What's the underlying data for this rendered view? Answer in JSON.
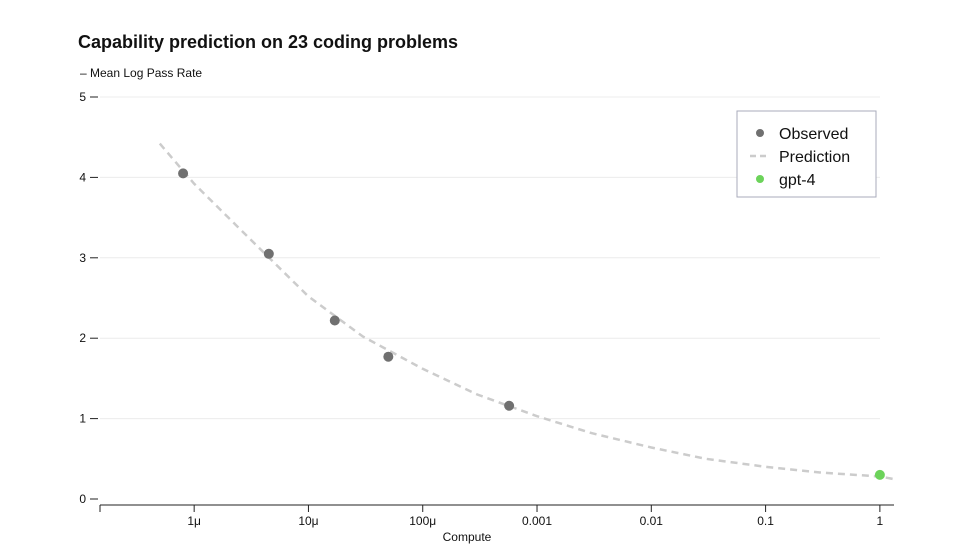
{
  "chart_data": {
    "type": "scatter",
    "title": "Capability prediction on 23 coding problems",
    "subtitle": "– Mean Log Pass Rate",
    "xlabel": "Compute",
    "ylabel": "– Mean Log Pass Rate",
    "x_scale": "log",
    "xlim": [
      1.5e-07,
      1.5
    ],
    "ylim": [
      0,
      5
    ],
    "grid": true,
    "x_ticks": [
      {
        "value": 1e-06,
        "label": "1μ"
      },
      {
        "value": 1e-05,
        "label": "10μ"
      },
      {
        "value": 0.0001,
        "label": "100μ"
      },
      {
        "value": 0.001,
        "label": "0.001"
      },
      {
        "value": 0.01,
        "label": "0.01"
      },
      {
        "value": 0.1,
        "label": "0.1"
      },
      {
        "value": 1,
        "label": "1"
      }
    ],
    "y_ticks": [
      {
        "value": 0,
        "label": "0"
      },
      {
        "value": 1,
        "label": "1"
      },
      {
        "value": 2,
        "label": "2"
      },
      {
        "value": 3,
        "label": "3"
      },
      {
        "value": 4,
        "label": "4"
      },
      {
        "value": 5,
        "label": "5"
      }
    ],
    "series": [
      {
        "name": "Observed",
        "kind": "points",
        "color": "#707070",
        "points": [
          {
            "x": 8e-07,
            "y": 4.05
          },
          {
            "x": 4.5e-06,
            "y": 3.05
          },
          {
            "x": 1.7e-05,
            "y": 2.22
          },
          {
            "x": 5e-05,
            "y": 1.77
          },
          {
            "x": 0.00057,
            "y": 1.16
          }
        ]
      },
      {
        "name": "Prediction",
        "kind": "dashed-line",
        "color": "#cccccc",
        "points": [
          {
            "x": 5e-07,
            "y": 4.42
          },
          {
            "x": 1e-06,
            "y": 3.92
          },
          {
            "x": 3e-06,
            "y": 3.25
          },
          {
            "x": 1e-05,
            "y": 2.52
          },
          {
            "x": 3e-05,
            "y": 2.02
          },
          {
            "x": 0.0001,
            "y": 1.62
          },
          {
            "x": 0.0003,
            "y": 1.3
          },
          {
            "x": 0.001,
            "y": 1.03
          },
          {
            "x": 0.003,
            "y": 0.82
          },
          {
            "x": 0.01,
            "y": 0.64
          },
          {
            "x": 0.03,
            "y": 0.5
          },
          {
            "x": 0.1,
            "y": 0.4
          },
          {
            "x": 0.3,
            "y": 0.33
          },
          {
            "x": 1.0,
            "y": 0.28
          },
          {
            "x": 1.3,
            "y": 0.25
          }
        ]
      },
      {
        "name": "gpt-4",
        "kind": "points",
        "color": "#6cd35a",
        "points": [
          {
            "x": 1.0,
            "y": 0.3
          }
        ]
      }
    ],
    "legend": {
      "position": "top-right",
      "entries": [
        {
          "label": "Observed",
          "marker": "dot",
          "color": "#707070"
        },
        {
          "label": "Prediction",
          "marker": "dash",
          "color": "#cccccc"
        },
        {
          "label": "gpt-4",
          "marker": "dot",
          "color": "#6cd35a"
        }
      ]
    }
  }
}
